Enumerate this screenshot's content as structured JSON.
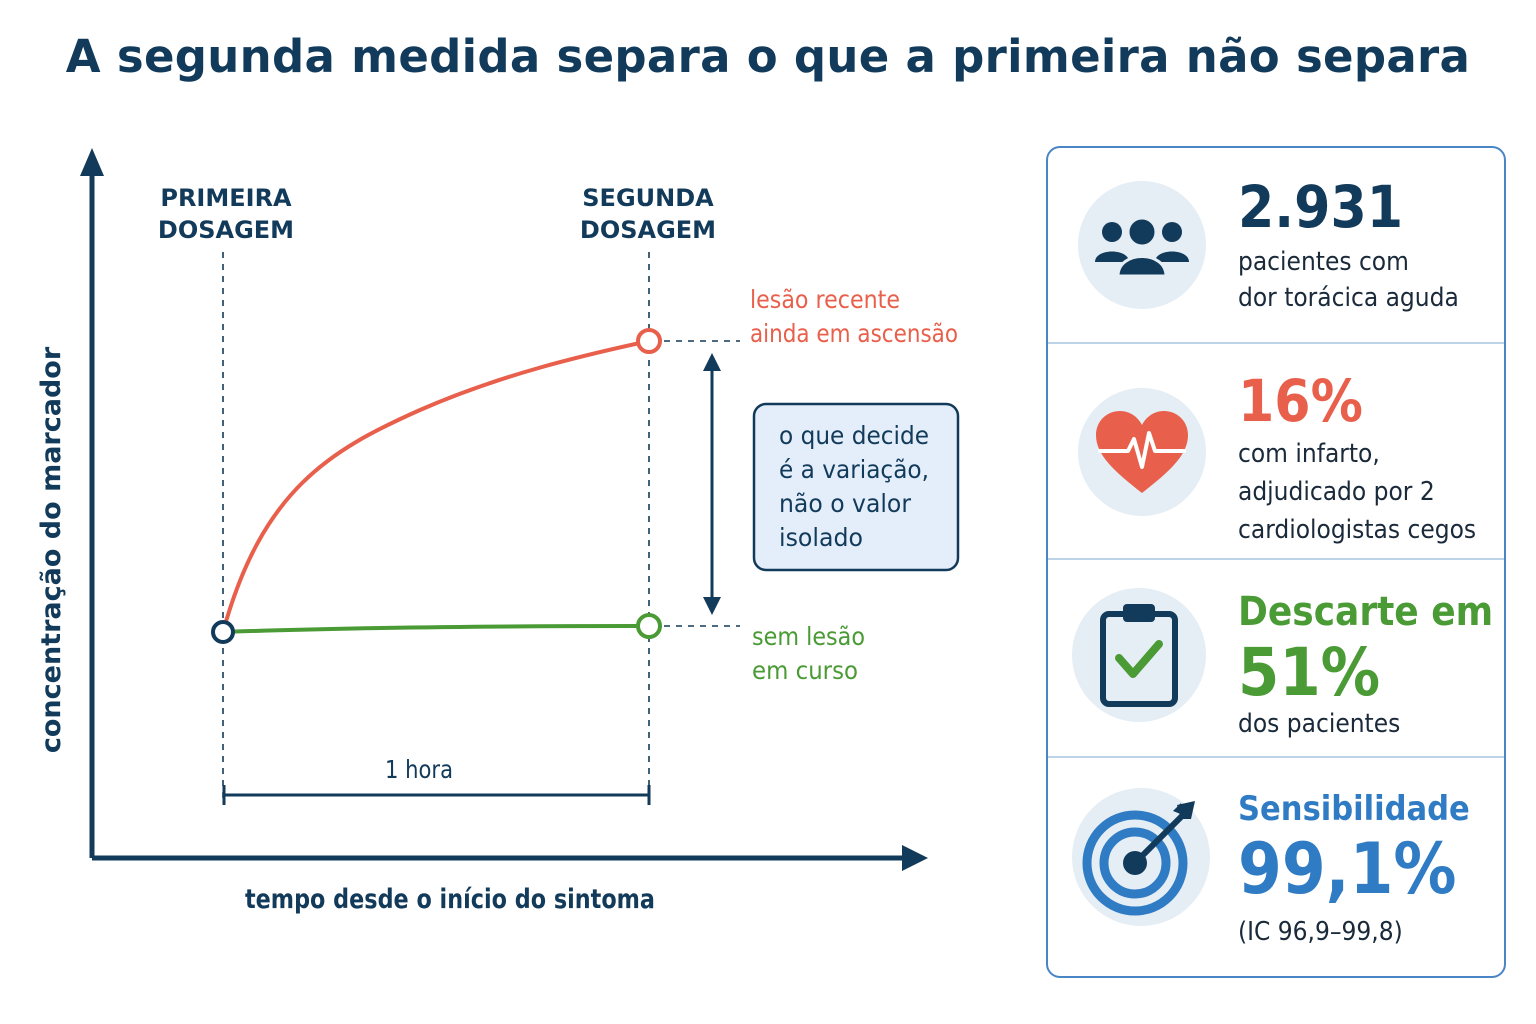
{
  "title": "A segunda medida separa o que a primeira não separa",
  "diagram": {
    "y_axis_label": "concentração do marcador",
    "x_axis_label": "tempo desde o início do sintoma",
    "first_measure_label": [
      "PRIMEIRA",
      "DOSAGEM"
    ],
    "second_measure_label": [
      "SEGUNDA",
      "DOSAGEM"
    ],
    "injury_label": [
      "lesão recente",
      "ainda em ascensão"
    ],
    "no_injury_label": [
      "sem lesão",
      "em curso"
    ],
    "interval_label": "1 hora",
    "callout": [
      "o que decide",
      "é a variação,",
      "não o valor",
      "isolado"
    ]
  },
  "colors": {
    "navy": "#123a5a",
    "injury": "#e8604c",
    "no_injury": "#4a9a35",
    "accent_blue": "#2f7bc4",
    "callout_bg": "#e3eefa"
  },
  "stats": [
    {
      "icon": "people-icon",
      "value": "2.931",
      "lines": [
        "pacientes com",
        "dor torácica aguda"
      ]
    },
    {
      "icon": "heart-pulse-icon",
      "value": "16%",
      "lines": [
        "com infarto,",
        "adjudicado por 2",
        "cardiologistas cegos"
      ]
    },
    {
      "icon": "clipboard-check-icon",
      "value_prefix": "Descarte em",
      "value": "51%",
      "lines": [
        "dos pacientes"
      ]
    },
    {
      "icon": "target-icon",
      "value_prefix": "Sensibilidade",
      "value": "99,1%",
      "lines": [
        "(IC 96,9–99,8)"
      ]
    }
  ]
}
